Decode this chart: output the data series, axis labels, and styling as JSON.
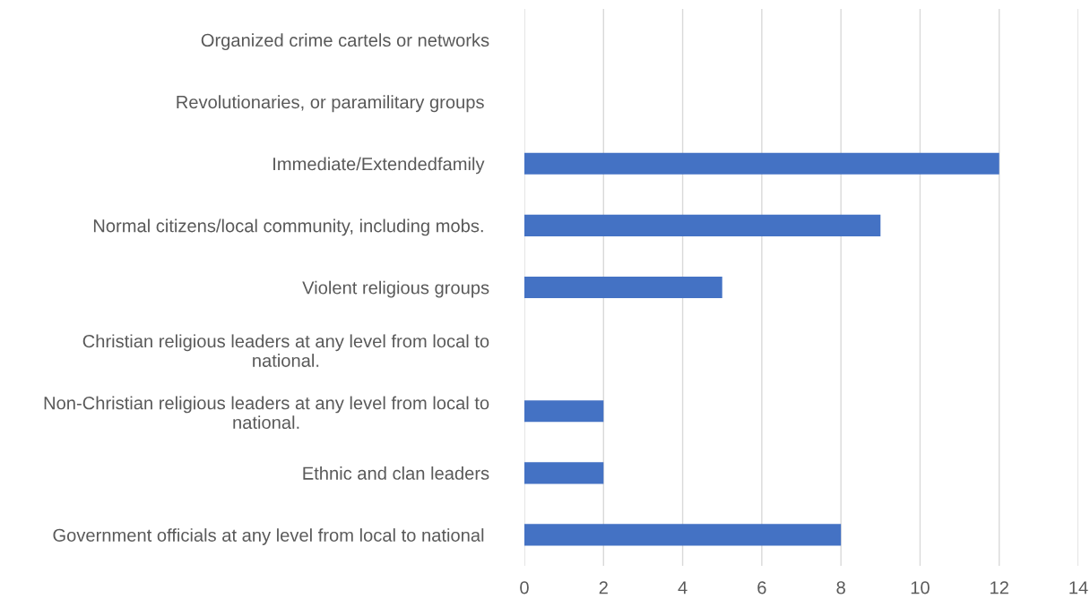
{
  "chart_data": {
    "type": "bar",
    "orientation": "horizontal",
    "categories": [
      "Organized crime cartels or networks",
      "Revolutionaries, or paramilitary groups ",
      "Immediate/Extendedfamily ",
      "Normal citizens/local community, including mobs. ",
      "Violent religious groups",
      "Christian religious leaders at any level from local to\nnational.",
      "Non-Christian religious leaders at any level from local to\nnational.",
      "Ethnic and clan leaders",
      "Government officials at any level from local to national "
    ],
    "values": [
      0,
      0,
      12,
      9,
      5,
      0,
      2,
      2,
      8
    ],
    "color": "#4472c4",
    "xlim": [
      0,
      14
    ],
    "xticks": [
      0,
      2,
      4,
      6,
      8,
      10,
      12,
      14
    ],
    "grid": "x",
    "legend": false
  }
}
